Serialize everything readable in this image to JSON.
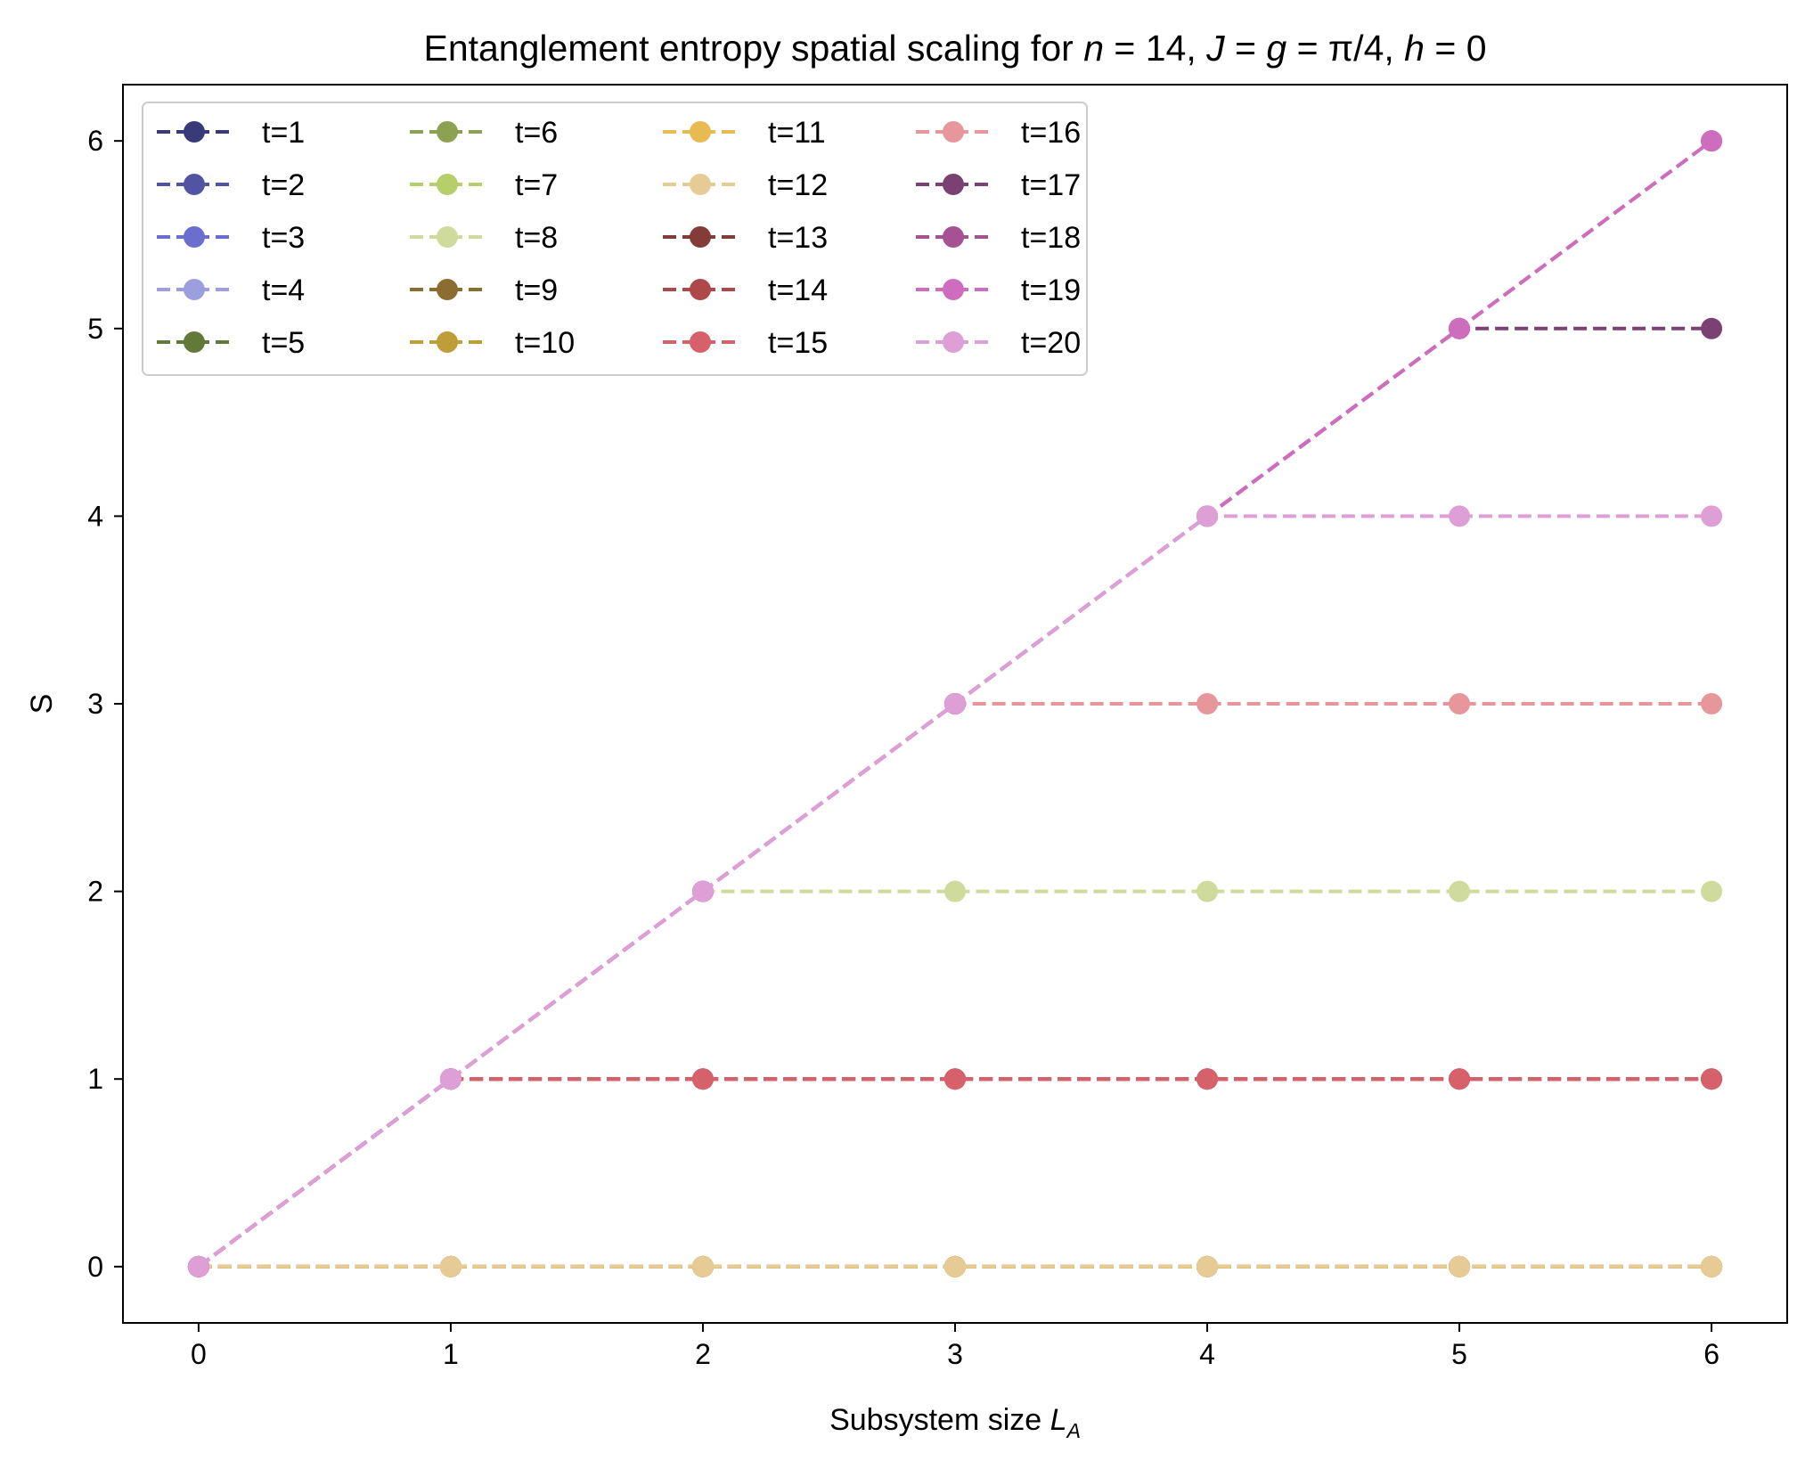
{
  "chart_data": {
    "type": "line",
    "title": "Entanglement entropy spatial scaling for",
    "title_math": [
      "n",
      " = 14, ",
      "J",
      " = ",
      "g",
      " = π/4, ",
      "h",
      " = 0"
    ],
    "xlabel": "Subsystem size",
    "xlabel_math": "L",
    "xlabel_sub": "A",
    "ylabel": "S",
    "xlim": [
      -0.3,
      6.3
    ],
    "ylim": [
      -0.3,
      6.3
    ],
    "x_ticks": [
      "0",
      "1",
      "2",
      "3",
      "4",
      "5",
      "6"
    ],
    "y_ticks": [
      "0",
      "1",
      "2",
      "3",
      "4",
      "5",
      "6"
    ],
    "grid": false,
    "legend_position": "upper-left",
    "legend_columns": 4,
    "line_style": "dashed",
    "marker": "circle",
    "x": [
      0,
      1,
      2,
      3,
      4,
      5,
      6
    ],
    "series": [
      {
        "name": "t=1",
        "color": "#393b79",
        "values": [
          0,
          0,
          0,
          0,
          0,
          0,
          0
        ]
      },
      {
        "name": "t=2",
        "color": "#5254a3",
        "values": [
          0,
          0,
          0,
          0,
          0,
          0,
          0
        ]
      },
      {
        "name": "t=3",
        "color": "#6b6ecf",
        "values": [
          0,
          0,
          0,
          0,
          0,
          0,
          0
        ]
      },
      {
        "name": "t=4",
        "color": "#9c9ede",
        "values": [
          0,
          0,
          0,
          0,
          0,
          0,
          0
        ]
      },
      {
        "name": "t=5",
        "color": "#637939",
        "values": [
          0,
          0,
          0,
          0,
          0,
          0,
          0
        ]
      },
      {
        "name": "t=6",
        "color": "#8ca252",
        "values": [
          0,
          0,
          0,
          0,
          0,
          0,
          0
        ]
      },
      {
        "name": "t=7",
        "color": "#b5cf6b",
        "values": [
          0,
          0,
          0,
          0,
          0,
          0,
          0
        ]
      },
      {
        "name": "t=8",
        "color": "#cedb9c",
        "values": [
          0,
          1,
          2,
          2,
          2,
          2,
          2
        ]
      },
      {
        "name": "t=9",
        "color": "#8c6d31",
        "values": [
          0,
          0,
          0,
          0,
          0,
          0,
          0
        ]
      },
      {
        "name": "t=10",
        "color": "#bd9e39",
        "values": [
          0,
          0,
          0,
          0,
          0,
          0,
          0
        ]
      },
      {
        "name": "t=11",
        "color": "#e7ba52",
        "values": [
          0,
          0,
          0,
          0,
          0,
          0,
          0
        ]
      },
      {
        "name": "t=12",
        "color": "#e7cb94",
        "values": [
          0,
          0,
          0,
          0,
          0,
          0,
          0
        ]
      },
      {
        "name": "t=13",
        "color": "#843c39",
        "values": [
          0,
          1,
          1,
          1,
          1,
          1,
          1
        ]
      },
      {
        "name": "t=14",
        "color": "#ad494a",
        "values": [
          0,
          1,
          1,
          1,
          1,
          1,
          1
        ]
      },
      {
        "name": "t=15",
        "color": "#d6616b",
        "values": [
          0,
          1,
          1,
          1,
          1,
          1,
          1
        ]
      },
      {
        "name": "t=16",
        "color": "#e7969c",
        "values": [
          0,
          1,
          2,
          3,
          3,
          3,
          3
        ]
      },
      {
        "name": "t=17",
        "color": "#7b4173",
        "values": [
          0,
          1,
          2,
          3,
          4,
          5,
          5
        ]
      },
      {
        "name": "t=18",
        "color": "#a55194",
        "values": [
          0,
          1,
          2,
          3,
          4,
          5,
          6
        ]
      },
      {
        "name": "t=19",
        "color": "#ce6dbd",
        "values": [
          0,
          1,
          2,
          3,
          4,
          5,
          6
        ]
      },
      {
        "name": "t=20",
        "color": "#de9ed6",
        "values": [
          0,
          1,
          2,
          3,
          4,
          4,
          4
        ]
      }
    ]
  }
}
